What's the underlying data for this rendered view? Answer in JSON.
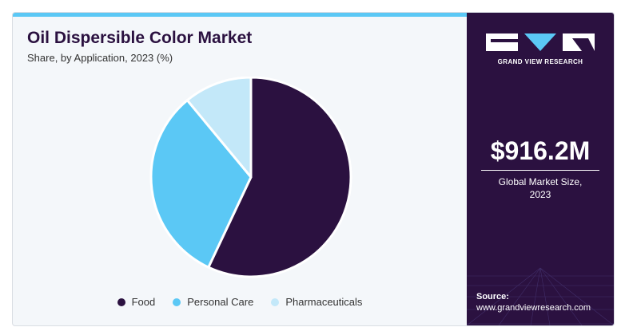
{
  "header": {
    "title": "Oil Dispersible Color Market",
    "subtitle": "Share, by Application, 2023 (%)"
  },
  "chart_data": {
    "type": "pie",
    "categories": [
      "Food",
      "Personal Care",
      "Pharmaceuticals"
    ],
    "values": [
      57,
      32,
      11
    ],
    "colors": [
      "#2b1140",
      "#5bc8f5",
      "#c3e8f9"
    ],
    "legend_position": "bottom"
  },
  "sidebar": {
    "brand": "GRAND VIEW RESEARCH",
    "market_size": "$916.2M",
    "market_size_caption_line1": "Global Market Size,",
    "market_size_caption_line2": "2023",
    "source_label": "Source:",
    "source_url": "www.grandviewresearch.com"
  }
}
